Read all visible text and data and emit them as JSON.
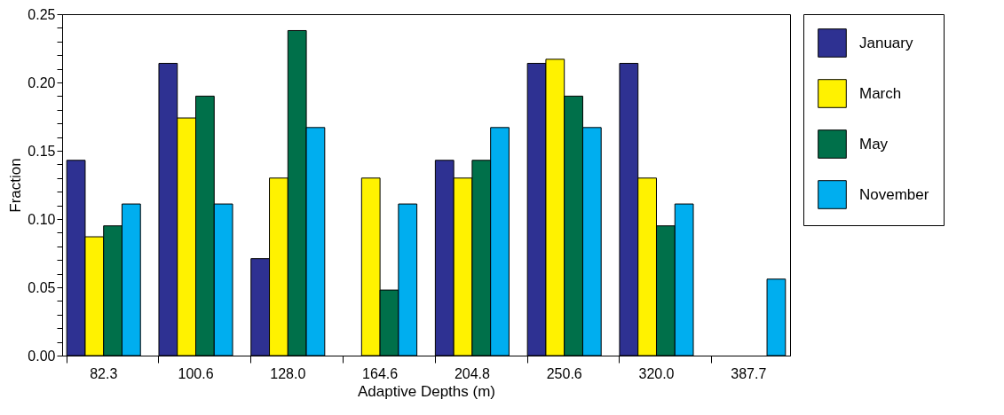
{
  "chart_data": {
    "type": "bar",
    "xlabel": "Adaptive Depths (m)",
    "ylabel": "Fraction",
    "categories": [
      "82.3",
      "100.6",
      "128.0",
      "164.6",
      "204.8",
      "250.6",
      "320.0",
      "387.7"
    ],
    "series": [
      {
        "name": "January",
        "color": "#2e3192",
        "values": [
          0.143,
          0.214,
          0.071,
          null,
          0.143,
          0.214,
          0.214,
          null
        ]
      },
      {
        "name": "March",
        "color": "#fff200",
        "values": [
          0.087,
          0.174,
          0.13,
          0.13,
          0.13,
          0.217,
          0.13,
          null
        ]
      },
      {
        "name": "May",
        "color": "#00704a",
        "values": [
          0.095,
          0.19,
          0.238,
          0.048,
          0.143,
          0.19,
          0.095,
          null
        ]
      },
      {
        "name": "November",
        "color": "#00aeef",
        "values": [
          0.111,
          0.111,
          0.167,
          0.111,
          0.167,
          0.167,
          0.111,
          0.056
        ]
      }
    ],
    "ylim": [
      0,
      0.25
    ],
    "yticks": [
      {
        "value": 0,
        "label": "0.00"
      },
      {
        "value": 0.01,
        "label": null
      },
      {
        "value": 0.02,
        "label": null
      },
      {
        "value": 0.03,
        "label": null
      },
      {
        "value": 0.04,
        "label": null
      },
      {
        "value": 0.05,
        "label": "0.05"
      },
      {
        "value": 0.06,
        "label": null
      },
      {
        "value": 0.07,
        "label": null
      },
      {
        "value": 0.08,
        "label": null
      },
      {
        "value": 0.09,
        "label": null
      },
      {
        "value": 0.1,
        "label": "0.10"
      },
      {
        "value": 0.11,
        "label": null
      },
      {
        "value": 0.12,
        "label": null
      },
      {
        "value": 0.13,
        "label": null
      },
      {
        "value": 0.14,
        "label": null
      },
      {
        "value": 0.15,
        "label": "0.15"
      },
      {
        "value": 0.16,
        "label": null
      },
      {
        "value": 0.17,
        "label": null
      },
      {
        "value": 0.18,
        "label": null
      },
      {
        "value": 0.19,
        "label": null
      },
      {
        "value": 0.2,
        "label": "0.20"
      },
      {
        "value": 0.21,
        "label": null
      },
      {
        "value": 0.22,
        "label": null
      },
      {
        "value": 0.23,
        "label": null
      },
      {
        "value": 0.24,
        "label": null
      },
      {
        "value": 0.25,
        "label": "0.25"
      }
    ],
    "grid": false,
    "legend": "right"
  }
}
